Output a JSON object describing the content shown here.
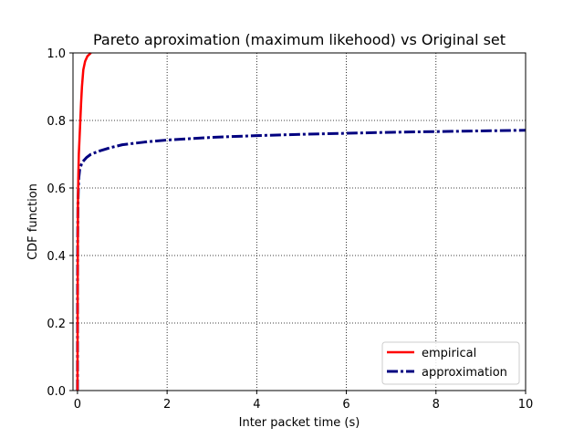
{
  "chart_data": {
    "type": "line",
    "title": "Pareto aproximation (maximum likehood) vs Original set",
    "xlabel": "Inter packet time (s)",
    "ylabel": "CDF function",
    "xlim": [
      -0.1,
      10
    ],
    "ylim": [
      0.0,
      1.0
    ],
    "xticks": [
      0,
      2,
      4,
      6,
      8,
      10
    ],
    "yticks": [
      0.0,
      0.2,
      0.4,
      0.6,
      0.8,
      1.0
    ],
    "xtick_labels": [
      "0",
      "2",
      "4",
      "6",
      "8",
      "10"
    ],
    "ytick_labels": [
      "0.0",
      "0.2",
      "0.4",
      "0.6",
      "0.8",
      "1.0"
    ],
    "grid": true,
    "legend_position": "lower-right",
    "series": [
      {
        "name": "empirical",
        "color": "#ff0000",
        "style": "solid",
        "x": [
          0.0,
          0.005,
          0.01,
          0.02,
          0.03,
          0.05,
          0.08,
          0.1,
          0.13,
          0.17,
          0.22,
          0.3
        ],
        "y": [
          0.0,
          0.35,
          0.55,
          0.64,
          0.7,
          0.76,
          0.85,
          0.9,
          0.95,
          0.975,
          0.99,
          1.0
        ]
      },
      {
        "name": "approximation",
        "color": "#000080",
        "style": "dashdot",
        "x": [
          0.0,
          0.002,
          0.005,
          0.01,
          0.02,
          0.03,
          0.05,
          0.1,
          0.2,
          0.3,
          0.5,
          0.75,
          1.0,
          1.5,
          2.0,
          3.0,
          4.0,
          5.0,
          6.0,
          7.0,
          8.0,
          9.0,
          10.0
        ],
        "y": [
          0.0,
          0.3,
          0.45,
          0.55,
          0.6,
          0.63,
          0.655,
          0.675,
          0.69,
          0.7,
          0.71,
          0.72,
          0.728,
          0.736,
          0.742,
          0.75,
          0.755,
          0.759,
          0.762,
          0.765,
          0.767,
          0.769,
          0.771
        ]
      }
    ]
  }
}
